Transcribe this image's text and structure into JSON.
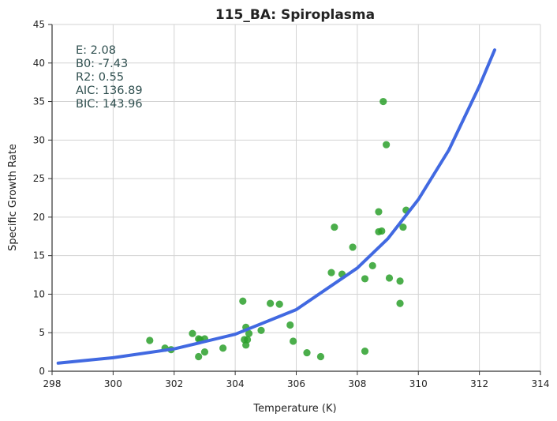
{
  "chart_data": {
    "type": "scatter",
    "title": "115_BA: Spiroplasma",
    "xlabel": "Temperature (K)",
    "ylabel": "Specific Growth Rate",
    "xlim": [
      298,
      314
    ],
    "ylim": [
      0,
      45
    ],
    "xticks": [
      "298",
      "300",
      "302",
      "304",
      "306",
      "308",
      "310",
      "312",
      "314"
    ],
    "yticks": [
      "0",
      "5",
      "10",
      "15",
      "20",
      "25",
      "30",
      "35",
      "40",
      "45"
    ],
    "grid": true,
    "annotations": [
      "E:  2.08",
      "B0:  -7.43",
      "R2:  0.55",
      "AIC: 136.89",
      "BIC: 143.96"
    ],
    "colors": {
      "points": "#2ca02c",
      "fit": "#4169e1"
    },
    "points": [
      {
        "x": 301.2,
        "y": 4.0
      },
      {
        "x": 301.7,
        "y": 3.0
      },
      {
        "x": 301.9,
        "y": 2.8
      },
      {
        "x": 302.6,
        "y": 4.9
      },
      {
        "x": 302.8,
        "y": 4.2
      },
      {
        "x": 302.85,
        "y": 4.1
      },
      {
        "x": 302.8,
        "y": 1.9
      },
      {
        "x": 303.0,
        "y": 4.2
      },
      {
        "x": 303.0,
        "y": 2.5
      },
      {
        "x": 303.6,
        "y": 3.0
      },
      {
        "x": 304.25,
        "y": 9.1
      },
      {
        "x": 304.3,
        "y": 4.1
      },
      {
        "x": 304.35,
        "y": 5.7
      },
      {
        "x": 304.35,
        "y": 3.4
      },
      {
        "x": 304.4,
        "y": 4.1
      },
      {
        "x": 304.45,
        "y": 4.9
      },
      {
        "x": 304.85,
        "y": 5.3
      },
      {
        "x": 305.15,
        "y": 8.8
      },
      {
        "x": 305.45,
        "y": 8.7
      },
      {
        "x": 305.8,
        "y": 6.0
      },
      {
        "x": 305.9,
        "y": 3.9
      },
      {
        "x": 306.35,
        "y": 2.4
      },
      {
        "x": 306.8,
        "y": 1.9
      },
      {
        "x": 307.15,
        "y": 12.8
      },
      {
        "x": 307.25,
        "y": 18.7
      },
      {
        "x": 307.5,
        "y": 12.6
      },
      {
        "x": 307.85,
        "y": 16.1
      },
      {
        "x": 308.25,
        "y": 12.0
      },
      {
        "x": 308.25,
        "y": 2.6
      },
      {
        "x": 308.5,
        "y": 13.7
      },
      {
        "x": 308.7,
        "y": 20.7
      },
      {
        "x": 308.7,
        "y": 18.1
      },
      {
        "x": 308.8,
        "y": 18.2
      },
      {
        "x": 308.85,
        "y": 35.0
      },
      {
        "x": 308.95,
        "y": 29.4
      },
      {
        "x": 309.05,
        "y": 12.1
      },
      {
        "x": 309.4,
        "y": 11.7
      },
      {
        "x": 309.4,
        "y": 8.8
      },
      {
        "x": 309.5,
        "y": 18.7
      },
      {
        "x": 309.6,
        "y": 20.9
      }
    ],
    "fit_curve": {
      "x": [
        298.2,
        300,
        302,
        304,
        306,
        308,
        309,
        310,
        311,
        312,
        312.5
      ],
      "y": [
        1.05,
        1.75,
        2.9,
        4.8,
        8.0,
        13.4,
        17.2,
        22.3,
        28.7,
        37.0,
        41.7
      ]
    }
  }
}
